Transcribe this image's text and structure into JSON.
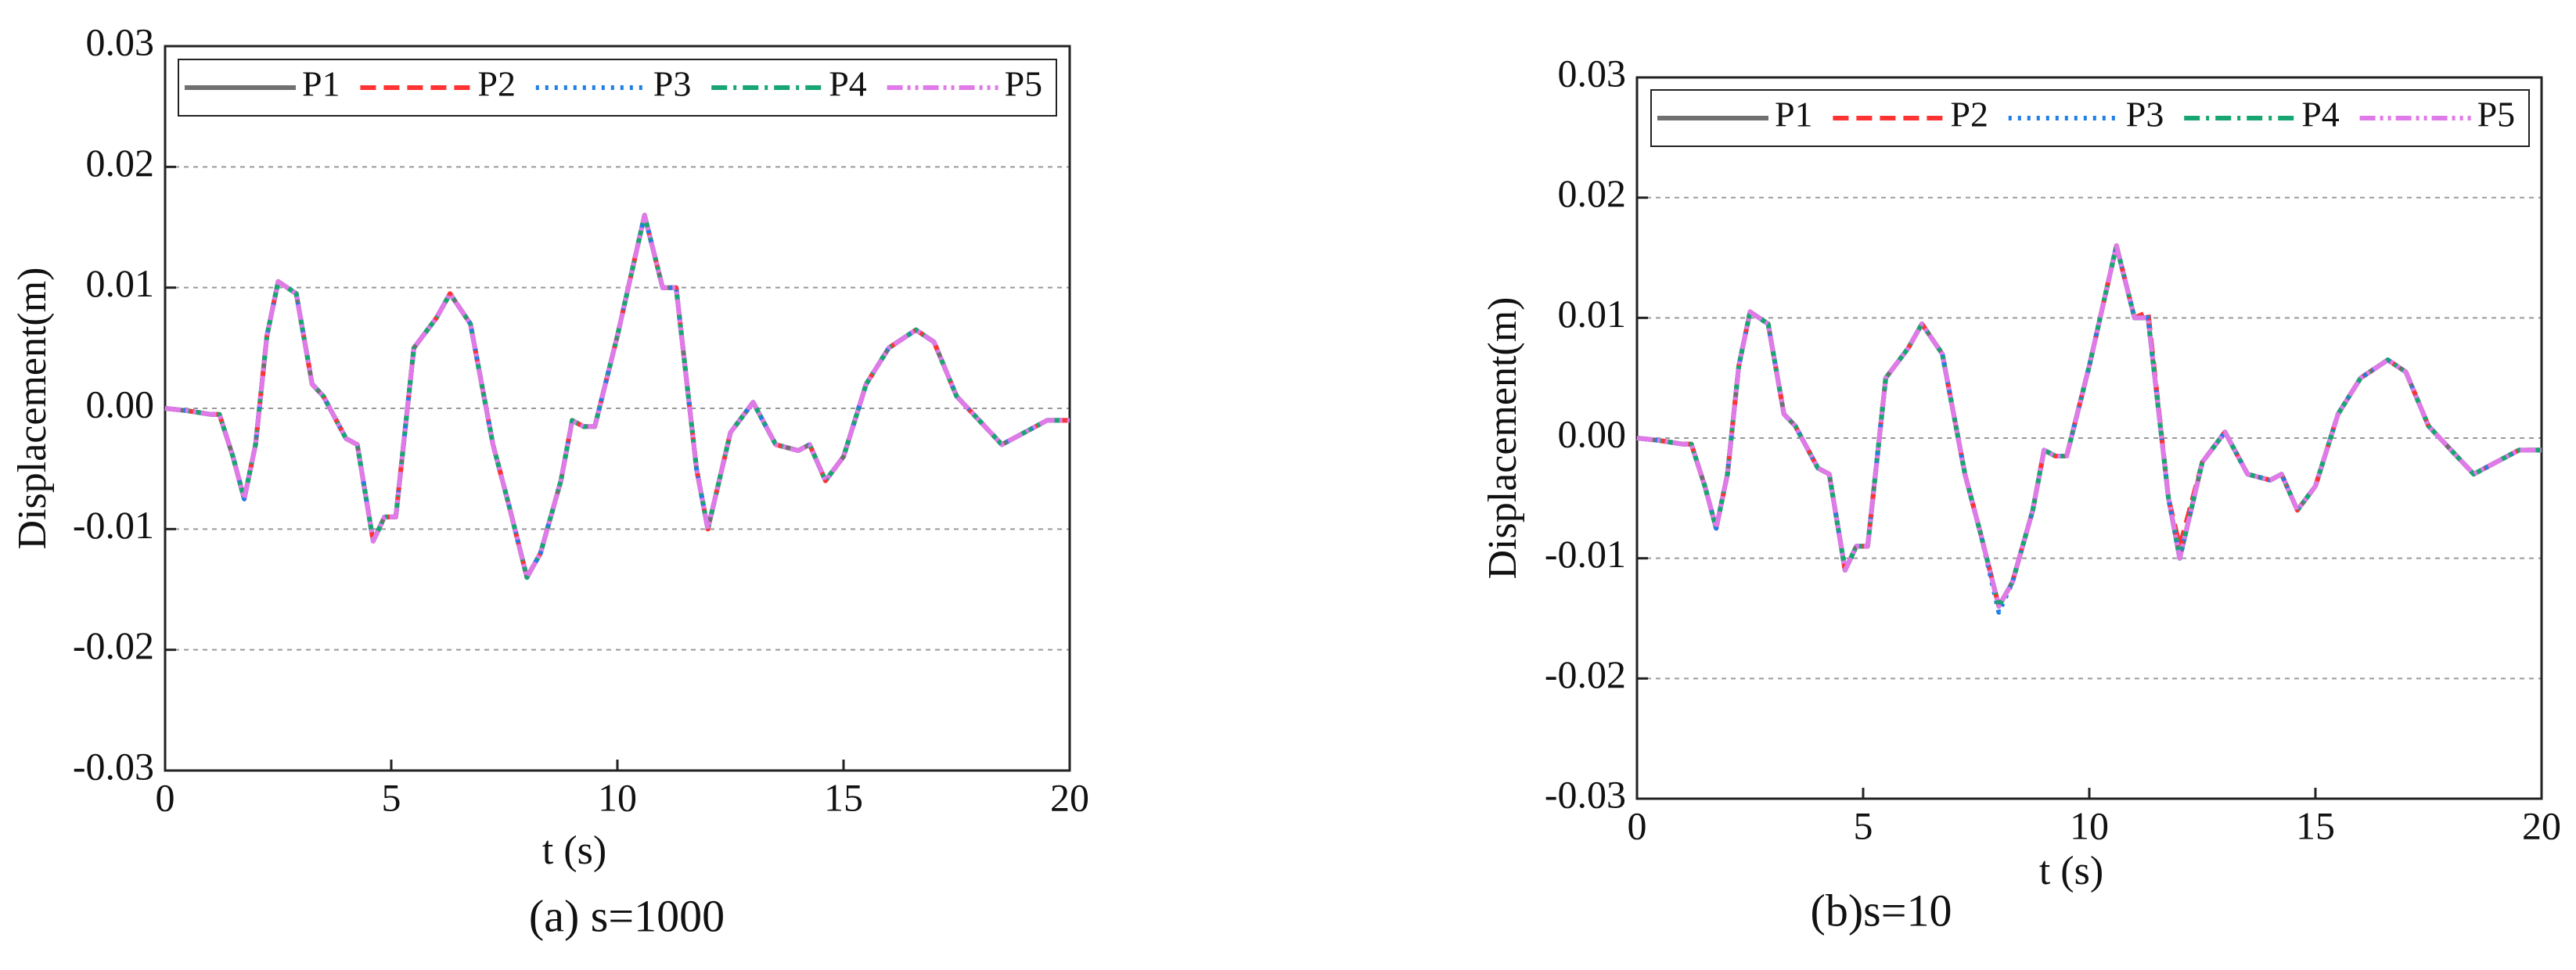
{
  "chart_data": [
    {
      "type": "line",
      "caption": "(a) s=1000",
      "x_label": "t (s)",
      "y_label": "Displacement(m)",
      "xlim": [
        0,
        20
      ],
      "xticks": [
        0,
        5,
        10,
        15,
        20
      ],
      "ylim": [
        -0.03,
        0.03
      ],
      "yticks": [
        -0.03,
        -0.02,
        -0.01,
        {
          "value": 0,
          "label": "0.00"
        },
        0.01,
        0.02,
        0.03
      ],
      "grid": true,
      "legend": "top",
      "x": [
        0,
        0.5,
        1,
        1.2,
        1.5,
        1.75,
        2,
        2.25,
        2.5,
        2.9,
        3.25,
        3.5,
        4,
        4.25,
        4.6,
        4.85,
        5.1,
        5.5,
        6,
        6.3,
        6.75,
        7.25,
        7.6,
        8,
        8.3,
        8.75,
        9,
        9.25,
        9.5,
        10,
        10.6,
        11,
        11.3,
        11.75,
        12,
        12.5,
        13,
        13.5,
        14,
        14.25,
        14.6,
        15,
        15.5,
        16,
        16.6,
        17,
        17.5,
        18,
        18.5,
        19,
        19.5,
        20
      ],
      "series": [
        {
          "name": "P1",
          "color": "#707070",
          "dash": "solid",
          "values": [
            0,
            -0.0002,
            -0.0005,
            -0.0005,
            -0.004,
            -0.0075,
            -0.003,
            0.006,
            0.0105,
            0.0095,
            0.002,
            0.001,
            -0.0025,
            -0.003,
            -0.011,
            -0.009,
            -0.009,
            0.005,
            0.0075,
            0.0095,
            0.007,
            -0.003,
            -0.008,
            -0.014,
            -0.012,
            -0.006,
            -0.001,
            -0.0015,
            -0.0015,
            0.006,
            0.016,
            0.01,
            0.01,
            -0.005,
            -0.01,
            -0.002,
            0.0005,
            -0.003,
            -0.0035,
            -0.003,
            -0.006,
            -0.004,
            0.002,
            0.005,
            0.0065,
            0.0055,
            0.001,
            -0.001,
            -0.003,
            -0.002,
            -0.001,
            -0.001
          ]
        },
        {
          "name": "P2",
          "color": "#ff3333",
          "dash": "dash",
          "values": [
            0,
            -0.0002,
            -0.0005,
            -0.0005,
            -0.004,
            -0.0075,
            -0.003,
            0.006,
            0.0105,
            0.0095,
            0.002,
            0.001,
            -0.0025,
            -0.003,
            -0.011,
            -0.009,
            -0.009,
            0.005,
            0.0075,
            0.0095,
            0.007,
            -0.003,
            -0.008,
            -0.014,
            -0.012,
            -0.006,
            -0.001,
            -0.0015,
            -0.0015,
            0.006,
            0.016,
            0.01,
            0.01,
            -0.005,
            -0.01,
            -0.002,
            0.0005,
            -0.003,
            -0.0035,
            -0.003,
            -0.006,
            -0.004,
            0.002,
            0.005,
            0.0065,
            0.0055,
            0.001,
            -0.001,
            -0.003,
            -0.002,
            -0.001,
            -0.001
          ]
        },
        {
          "name": "P3",
          "color": "#1f7fe6",
          "dash": "dot",
          "values": [
            0,
            -0.0002,
            -0.0005,
            -0.0005,
            -0.004,
            -0.0075,
            -0.003,
            0.006,
            0.0105,
            0.0095,
            0.002,
            0.001,
            -0.0025,
            -0.003,
            -0.011,
            -0.009,
            -0.009,
            0.005,
            0.0075,
            0.0095,
            0.007,
            -0.003,
            -0.008,
            -0.014,
            -0.012,
            -0.006,
            -0.001,
            -0.0015,
            -0.0015,
            0.006,
            0.016,
            0.01,
            0.01,
            -0.005,
            -0.01,
            -0.002,
            0.0005,
            -0.003,
            -0.0035,
            -0.003,
            -0.006,
            -0.004,
            0.002,
            0.005,
            0.0065,
            0.0055,
            0.001,
            -0.001,
            -0.003,
            -0.002,
            -0.001,
            -0.001
          ]
        },
        {
          "name": "P4",
          "color": "#17a672",
          "dash": "dashdot",
          "values": [
            0,
            -0.0002,
            -0.0005,
            -0.0005,
            -0.004,
            -0.0075,
            -0.003,
            0.006,
            0.0105,
            0.0095,
            0.002,
            0.001,
            -0.0025,
            -0.003,
            -0.011,
            -0.009,
            -0.009,
            0.005,
            0.0075,
            0.0095,
            0.007,
            -0.003,
            -0.008,
            -0.014,
            -0.012,
            -0.006,
            -0.001,
            -0.0015,
            -0.0015,
            0.006,
            0.016,
            0.01,
            0.01,
            -0.005,
            -0.01,
            -0.002,
            0.0005,
            -0.003,
            -0.0035,
            -0.003,
            -0.006,
            -0.004,
            0.002,
            0.005,
            0.0065,
            0.0055,
            0.001,
            -0.001,
            -0.003,
            -0.002,
            -0.001,
            -0.001
          ]
        },
        {
          "name": "P5",
          "color": "#e07ae8",
          "dash": "dashdotdot",
          "values": [
            0,
            -0.0002,
            -0.0005,
            -0.0005,
            -0.004,
            -0.0075,
            -0.003,
            0.006,
            0.0105,
            0.0095,
            0.002,
            0.001,
            -0.0025,
            -0.003,
            -0.011,
            -0.009,
            -0.009,
            0.005,
            0.0075,
            0.0095,
            0.007,
            -0.003,
            -0.008,
            -0.014,
            -0.012,
            -0.006,
            -0.001,
            -0.0015,
            -0.0015,
            0.006,
            0.016,
            0.01,
            0.01,
            -0.005,
            -0.01,
            -0.002,
            0.0005,
            -0.003,
            -0.0035,
            -0.003,
            -0.006,
            -0.004,
            0.002,
            0.005,
            0.0065,
            0.0055,
            0.001,
            -0.001,
            -0.003,
            -0.002,
            -0.001,
            -0.001
          ]
        }
      ]
    },
    {
      "type": "line",
      "caption": "(b)s=10",
      "x_label": "t (s)",
      "y_label": "Displacement(m)",
      "xlim": [
        0,
        20
      ],
      "xticks": [
        0,
        5,
        10,
        15,
        20
      ],
      "ylim": [
        -0.03,
        0.03
      ],
      "yticks": [
        -0.03,
        -0.02,
        -0.01,
        {
          "value": 0,
          "label": "0.00"
        },
        0.01,
        0.02,
        0.03
      ],
      "grid": true,
      "legend": "top",
      "x": [
        0,
        0.5,
        1,
        1.2,
        1.5,
        1.75,
        2,
        2.25,
        2.5,
        2.9,
        3.25,
        3.5,
        4,
        4.25,
        4.6,
        4.85,
        5.1,
        5.5,
        6,
        6.3,
        6.75,
        7.25,
        7.6,
        8,
        8.3,
        8.75,
        9,
        9.25,
        9.5,
        10,
        10.6,
        11,
        11.3,
        11.75,
        12,
        12.5,
        13,
        13.5,
        14,
        14.25,
        14.6,
        15,
        15.5,
        16,
        16.6,
        17,
        17.5,
        18,
        18.5,
        19,
        19.5,
        20
      ],
      "series": [
        {
          "name": "P1",
          "color": "#707070",
          "dash": "solid",
          "values": [
            0,
            -0.0002,
            -0.0005,
            -0.0005,
            -0.004,
            -0.0075,
            -0.003,
            0.006,
            0.0105,
            0.0095,
            0.002,
            0.001,
            -0.0025,
            -0.003,
            -0.011,
            -0.009,
            -0.009,
            0.005,
            0.0075,
            0.0095,
            0.007,
            -0.003,
            -0.008,
            -0.014,
            -0.012,
            -0.006,
            -0.001,
            -0.0015,
            -0.0015,
            0.006,
            0.016,
            0.01,
            0.01,
            -0.005,
            -0.01,
            -0.002,
            0.0005,
            -0.003,
            -0.0035,
            -0.003,
            -0.006,
            -0.004,
            0.002,
            0.005,
            0.0065,
            0.0055,
            0.001,
            -0.001,
            -0.003,
            -0.002,
            -0.001,
            -0.001
          ]
        },
        {
          "name": "P2",
          "color": "#ff3333",
          "dash": "dash",
          "values": [
            0,
            -0.0002,
            -0.0005,
            -0.0005,
            -0.004,
            -0.0075,
            -0.003,
            0.006,
            0.0105,
            0.0095,
            0.002,
            0.001,
            -0.0025,
            -0.003,
            -0.011,
            -0.009,
            -0.009,
            0.005,
            0.0075,
            0.0095,
            0.007,
            -0.003,
            -0.008,
            -0.014,
            -0.012,
            -0.006,
            -0.001,
            -0.0015,
            -0.0015,
            0.006,
            0.016,
            0.01,
            0.0105,
            -0.005,
            -0.009,
            -0.002,
            0.0005,
            -0.003,
            -0.0035,
            -0.003,
            -0.006,
            -0.004,
            0.002,
            0.005,
            0.0065,
            0.0055,
            0.001,
            -0.001,
            -0.003,
            -0.002,
            -0.001,
            -0.001
          ]
        },
        {
          "name": "P3",
          "color": "#1f7fe6",
          "dash": "dot",
          "values": [
            0,
            -0.0002,
            -0.0005,
            -0.0005,
            -0.004,
            -0.0075,
            -0.003,
            0.006,
            0.0105,
            0.0095,
            0.002,
            0.001,
            -0.0025,
            -0.003,
            -0.011,
            -0.009,
            -0.009,
            0.005,
            0.0075,
            0.0095,
            0.007,
            -0.003,
            -0.008,
            -0.0145,
            -0.012,
            -0.006,
            -0.001,
            -0.0015,
            -0.0015,
            0.006,
            0.016,
            0.01,
            0.01,
            -0.005,
            -0.01,
            -0.002,
            0.0005,
            -0.003,
            -0.0035,
            -0.003,
            -0.006,
            -0.004,
            0.002,
            0.005,
            0.0065,
            0.0055,
            0.001,
            -0.001,
            -0.003,
            -0.002,
            -0.001,
            -0.001
          ]
        },
        {
          "name": "P4",
          "color": "#17a672",
          "dash": "dashdot",
          "values": [
            0,
            -0.0002,
            -0.0005,
            -0.0005,
            -0.004,
            -0.0075,
            -0.003,
            0.006,
            0.0105,
            0.0095,
            0.002,
            0.001,
            -0.0025,
            -0.003,
            -0.011,
            -0.009,
            -0.009,
            0.005,
            0.0075,
            0.0095,
            0.007,
            -0.003,
            -0.008,
            -0.014,
            -0.012,
            -0.006,
            -0.001,
            -0.0015,
            -0.0015,
            0.006,
            0.016,
            0.01,
            0.01,
            -0.005,
            -0.01,
            -0.002,
            0.0005,
            -0.003,
            -0.0035,
            -0.003,
            -0.006,
            -0.004,
            0.002,
            0.005,
            0.0065,
            0.0055,
            0.001,
            -0.001,
            -0.003,
            -0.002,
            -0.001,
            -0.001
          ]
        },
        {
          "name": "P5",
          "color": "#e07ae8",
          "dash": "dashdotdot",
          "values": [
            0,
            -0.0002,
            -0.0005,
            -0.0005,
            -0.004,
            -0.0075,
            -0.003,
            0.006,
            0.0105,
            0.0095,
            0.002,
            0.001,
            -0.0025,
            -0.003,
            -0.011,
            -0.009,
            -0.009,
            0.005,
            0.0075,
            0.0095,
            0.007,
            -0.003,
            -0.008,
            -0.014,
            -0.012,
            -0.006,
            -0.001,
            -0.0015,
            -0.0015,
            0.006,
            0.016,
            0.01,
            0.01,
            -0.005,
            -0.01,
            -0.002,
            0.0005,
            -0.003,
            -0.0035,
            -0.003,
            -0.006,
            -0.004,
            0.002,
            0.005,
            0.0065,
            0.0055,
            0.001,
            -0.001,
            -0.003,
            -0.002,
            -0.001,
            -0.001
          ]
        }
      ]
    }
  ]
}
